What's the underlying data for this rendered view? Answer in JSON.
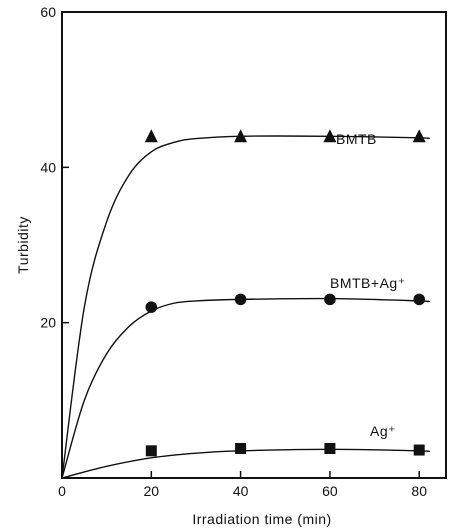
{
  "chart_data": {
    "type": "scatter",
    "xlabel": "Irradiation time (min)",
    "ylabel": "Turbidity",
    "xlim": [
      0,
      86
    ],
    "ylim": [
      0,
      60
    ],
    "x_ticks": [
      "0",
      "20",
      "40",
      "60",
      "80"
    ],
    "y_ticks": [
      "20",
      "40",
      "60"
    ],
    "grid": false,
    "series": [
      {
        "name": "BMTB",
        "marker": "triangle",
        "x": [
          20,
          40,
          60,
          80
        ],
        "y": [
          44,
          44,
          44,
          44
        ],
        "curve": [
          [
            0,
            0
          ],
          [
            5,
            22
          ],
          [
            10,
            33
          ],
          [
            15,
            39
          ],
          [
            20,
            42
          ],
          [
            25,
            43.2
          ],
          [
            30,
            43.7
          ],
          [
            40,
            44
          ],
          [
            60,
            44
          ],
          [
            80,
            43.8
          ],
          [
            82,
            43.7
          ]
        ]
      },
      {
        "name": "BMTB+Ag⁺",
        "marker": "circle",
        "x": [
          20,
          40,
          60,
          80
        ],
        "y": [
          22,
          23,
          23,
          23
        ],
        "curve": [
          [
            0,
            0
          ],
          [
            5,
            10
          ],
          [
            10,
            16
          ],
          [
            15,
            19.5
          ],
          [
            20,
            21.5
          ],
          [
            25,
            22.5
          ],
          [
            30,
            22.8
          ],
          [
            40,
            23
          ],
          [
            60,
            23.1
          ],
          [
            80,
            22.8
          ],
          [
            82,
            22.7
          ]
        ]
      },
      {
        "name": "Ag⁺",
        "marker": "square",
        "x": [
          20,
          40,
          60,
          80
        ],
        "y": [
          3.5,
          3.8,
          3.8,
          3.6
        ],
        "curve": [
          [
            0,
            0
          ],
          [
            10,
            1.5
          ],
          [
            20,
            2.6
          ],
          [
            30,
            3.2
          ],
          [
            40,
            3.5
          ],
          [
            60,
            3.7
          ],
          [
            80,
            3.5
          ],
          [
            82,
            3.4
          ]
        ]
      }
    ]
  }
}
